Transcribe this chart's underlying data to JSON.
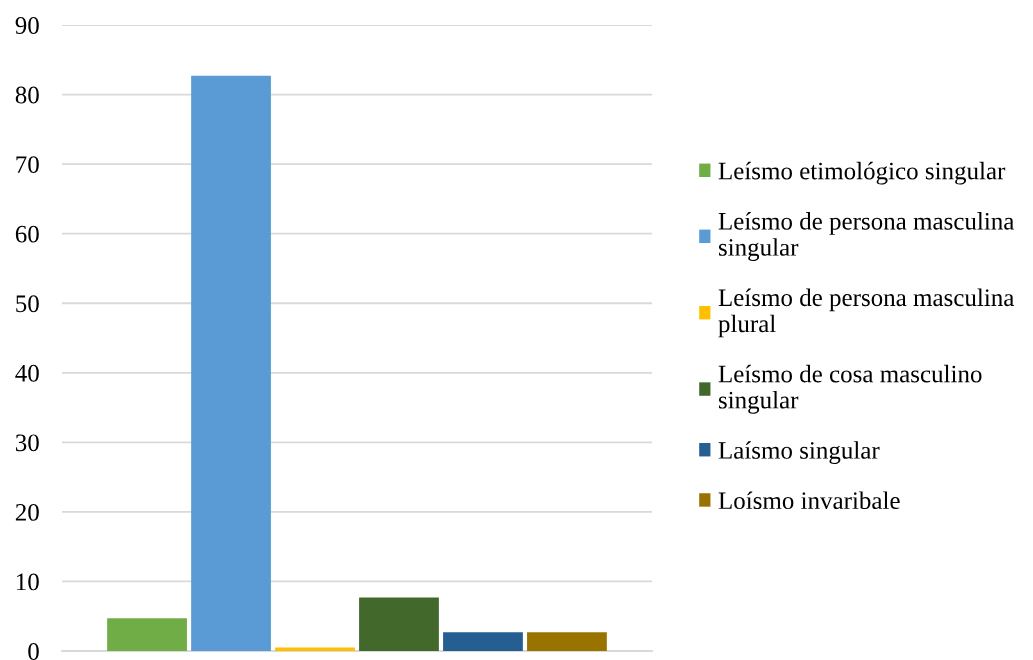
{
  "chart_data": {
    "type": "bar",
    "categories": [
      null
    ],
    "series": [
      {
        "name": "Leísmo etimológico singular",
        "color": "#70ad47",
        "values": [
          4.7
        ]
      },
      {
        "name": "Leísmo de persona masculina singular",
        "color": "#5b9bd5",
        "values": [
          82.7
        ]
      },
      {
        "name": "Leísmo de persona masculina plural",
        "color": "#ffc000",
        "values": [
          0.5
        ]
      },
      {
        "name": "Leísmo de cosa masculino singular",
        "color": "#43682b",
        "values": [
          7.7
        ]
      },
      {
        "name": "Laísmo singular",
        "color": "#255e91",
        "values": [
          2.7
        ]
      },
      {
        "name": "Loísmo invaribale",
        "color": "#997300",
        "values": [
          2.7
        ]
      }
    ],
    "ylim": [
      0,
      90
    ],
    "yticks": [
      0,
      10,
      20,
      30,
      40,
      50,
      60,
      70,
      80,
      90
    ],
    "grid": "y",
    "legend": "right"
  }
}
